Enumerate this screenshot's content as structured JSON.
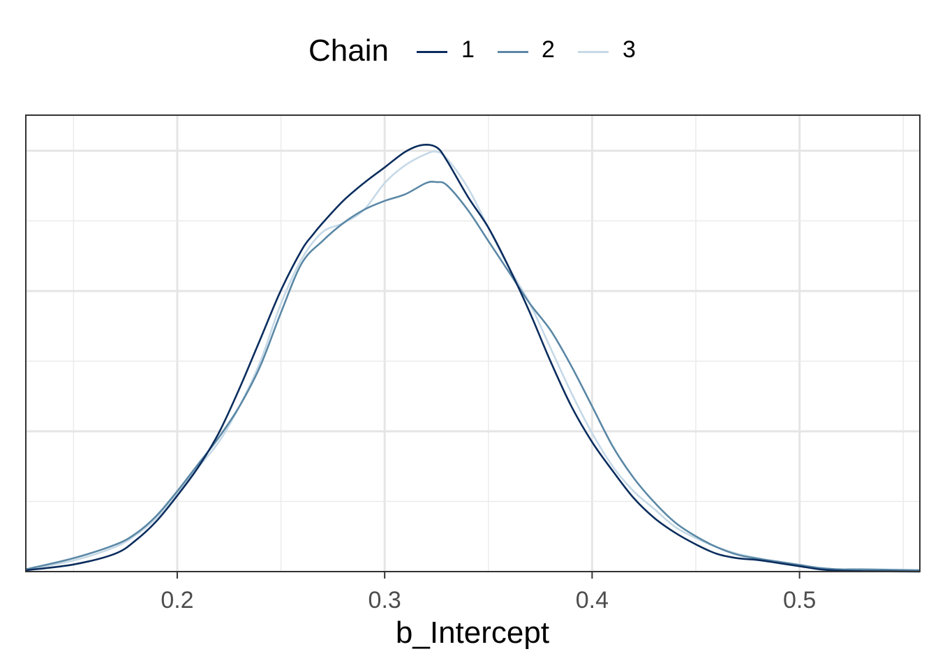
{
  "chart_data": {
    "type": "line",
    "title": "",
    "xlabel": "b_Intercept",
    "ylabel": "",
    "xlim": [
      0.127,
      0.558
    ],
    "ylim": [
      0,
      1
    ],
    "x_ticks": [
      "0.2",
      "0.3",
      "0.4",
      "0.5"
    ],
    "legend": {
      "title": "Chain",
      "placement": "top"
    },
    "grid": true,
    "series": [
      {
        "name": "1",
        "color": "#0b2d5e",
        "x": [
          0.127,
          0.15,
          0.17,
          0.18,
          0.19,
          0.2,
          0.21,
          0.22,
          0.23,
          0.24,
          0.25,
          0.26,
          0.265,
          0.27,
          0.28,
          0.29,
          0.3,
          0.31,
          0.318,
          0.325,
          0.33,
          0.34,
          0.35,
          0.36,
          0.37,
          0.38,
          0.39,
          0.4,
          0.41,
          0.42,
          0.43,
          0.44,
          0.45,
          0.46,
          0.47,
          0.48,
          0.49,
          0.5,
          0.51,
          0.52,
          0.53,
          0.558
        ],
        "y": [
          0.003,
          0.016,
          0.04,
          0.07,
          0.113,
          0.17,
          0.233,
          0.31,
          0.41,
          0.52,
          0.63,
          0.72,
          0.752,
          0.78,
          0.83,
          0.87,
          0.905,
          0.94,
          0.955,
          0.95,
          0.92,
          0.84,
          0.77,
          0.68,
          0.58,
          0.47,
          0.37,
          0.29,
          0.225,
          0.165,
          0.12,
          0.087,
          0.061,
          0.04,
          0.03,
          0.026,
          0.019,
          0.012,
          0.005,
          0.002,
          0.001,
          0.0
        ]
      },
      {
        "name": "2",
        "color": "#5b88a6",
        "x": [
          0.127,
          0.15,
          0.17,
          0.18,
          0.19,
          0.2,
          0.21,
          0.22,
          0.23,
          0.24,
          0.25,
          0.26,
          0.27,
          0.28,
          0.29,
          0.3,
          0.31,
          0.32,
          0.325,
          0.33,
          0.34,
          0.35,
          0.36,
          0.37,
          0.38,
          0.39,
          0.4,
          0.41,
          0.42,
          0.43,
          0.44,
          0.45,
          0.46,
          0.47,
          0.48,
          0.49,
          0.5,
          0.51,
          0.52,
          0.53,
          0.558
        ],
        "y": [
          0.005,
          0.03,
          0.06,
          0.085,
          0.125,
          0.18,
          0.24,
          0.3,
          0.37,
          0.46,
          0.58,
          0.69,
          0.74,
          0.78,
          0.81,
          0.83,
          0.845,
          0.87,
          0.872,
          0.865,
          0.81,
          0.74,
          0.67,
          0.6,
          0.54,
          0.46,
          0.37,
          0.28,
          0.21,
          0.155,
          0.11,
          0.079,
          0.055,
          0.038,
          0.029,
          0.022,
          0.015,
          0.008,
          0.005,
          0.005,
          0.003
        ]
      },
      {
        "name": "3",
        "color": "#c6d9e7",
        "x": [
          0.127,
          0.15,
          0.17,
          0.18,
          0.19,
          0.2,
          0.21,
          0.22,
          0.23,
          0.24,
          0.25,
          0.26,
          0.27,
          0.28,
          0.29,
          0.3,
          0.31,
          0.32,
          0.325,
          0.33,
          0.34,
          0.35,
          0.36,
          0.37,
          0.38,
          0.39,
          0.4,
          0.41,
          0.42,
          0.43,
          0.44,
          0.45,
          0.46,
          0.47,
          0.48,
          0.49,
          0.5,
          0.51,
          0.52,
          0.53,
          0.558
        ],
        "y": [
          0.004,
          0.025,
          0.055,
          0.082,
          0.12,
          0.175,
          0.233,
          0.29,
          0.37,
          0.47,
          0.6,
          0.7,
          0.76,
          0.78,
          0.81,
          0.87,
          0.91,
          0.935,
          0.94,
          0.925,
          0.86,
          0.77,
          0.68,
          0.6,
          0.5,
          0.4,
          0.31,
          0.235,
          0.18,
          0.14,
          0.1,
          0.075,
          0.055,
          0.04,
          0.03,
          0.02,
          0.013,
          0.008,
          0.004,
          0.002,
          0.001
        ]
      }
    ]
  }
}
